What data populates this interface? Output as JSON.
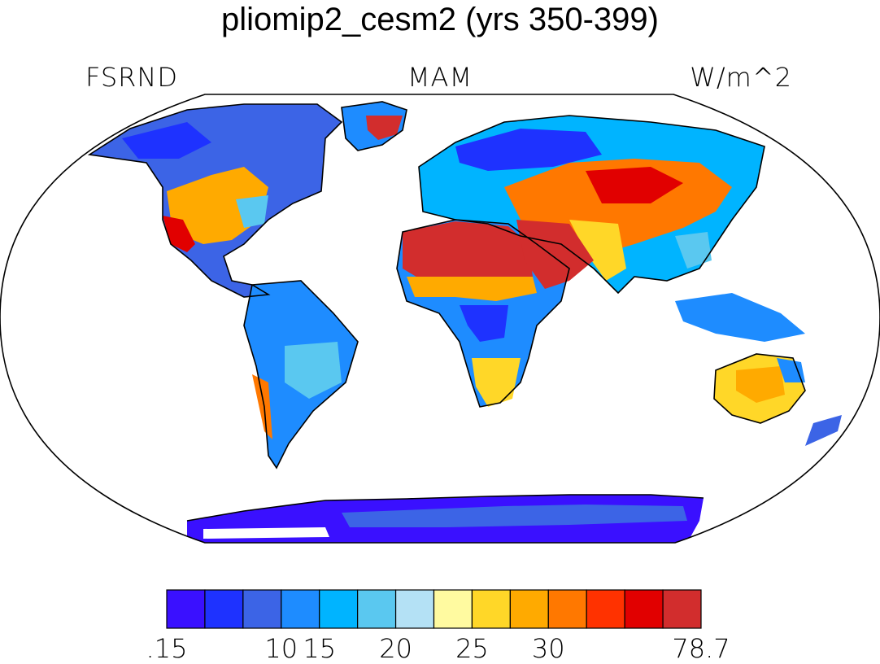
{
  "title": "pliomip2_cesm2 (yrs 350-399)",
  "variable": "FSRND",
  "season": "MAM",
  "units": "W/m^2",
  "map": {
    "projection": "robinson",
    "continent_outlines": true,
    "data_regions": [
      {
        "region": "Sahara",
        "color": "#d42f2f"
      },
      {
        "region": "Arabian Peninsula",
        "color": "#d42f2f"
      },
      {
        "region": "Greenland interior",
        "color": "#d42f2f"
      },
      {
        "region": "Central Asia",
        "color": "#ff6a00"
      },
      {
        "region": "Western North America",
        "color": "#ffaa00"
      },
      {
        "region": "Australia",
        "color": "#ffd42a"
      },
      {
        "region": "Siberia",
        "color": "#1e3cff"
      },
      {
        "region": "Central Africa",
        "color": "#1e90ff"
      },
      {
        "region": "Amazon",
        "color": "#1e90ff"
      },
      {
        "region": "Antarctica",
        "color": "#3a10ff"
      }
    ]
  },
  "colorbar": {
    "colors": [
      "#3a10ff",
      "#1e32ff",
      "#3c64e6",
      "#1e8cff",
      "#00b4ff",
      "#5ac8f0",
      "#b4e1f5",
      "#fffaa0",
      "#ffd728",
      "#ffaa00",
      "#ff7800",
      "#ff3200",
      "#e10000",
      "#d22d2d"
    ],
    "tick_labels": [
      ".15",
      "10",
      "15",
      "20",
      "25",
      "30",
      "78.7"
    ],
    "tick_boundaries": [
      0,
      3,
      4,
      6,
      8,
      10,
      14
    ]
  }
}
